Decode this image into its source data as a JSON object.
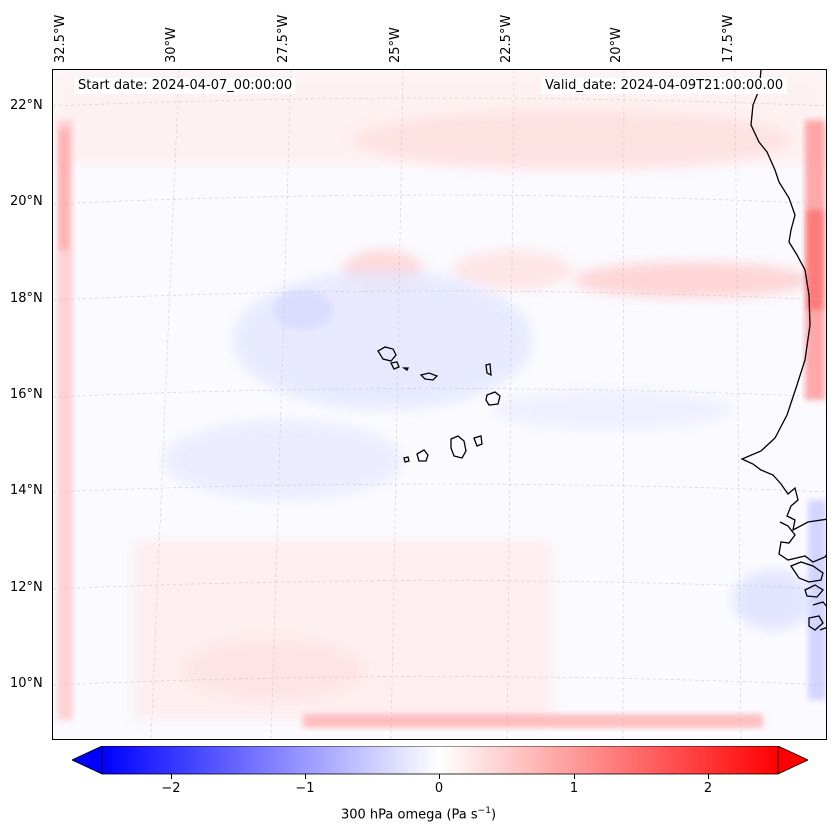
{
  "map": {
    "start_date": "Start date: 2024-04-07_00:00:00",
    "valid_date": "Valid_date: 2024-04-09T21:00:00.00",
    "lon_labels": [
      "32.5°W",
      "30°W",
      "27.5°W",
      "25°W",
      "22.5°W",
      "20°W",
      "17.5°W"
    ],
    "lat_labels": [
      "22°N",
      "20°N",
      "18°N",
      "16°N",
      "14°N",
      "12°N",
      "10°N"
    ],
    "features": [
      "Cape Verde islands",
      "West African coastline"
    ],
    "colors": {
      "positive": "#ff0000",
      "negative": "#0000ff",
      "neutral": "#ffffff",
      "coast": "#000000"
    }
  },
  "colorbar": {
    "ticks": [
      "−2",
      "−1",
      "0",
      "1",
      "2"
    ],
    "tick_values": [
      -2,
      -1,
      0,
      1,
      2
    ],
    "range": [
      -2.5,
      2.5
    ],
    "label_main": "300 hPa omega (Pa s",
    "label_sup": "−1",
    "label_end": ")"
  }
}
